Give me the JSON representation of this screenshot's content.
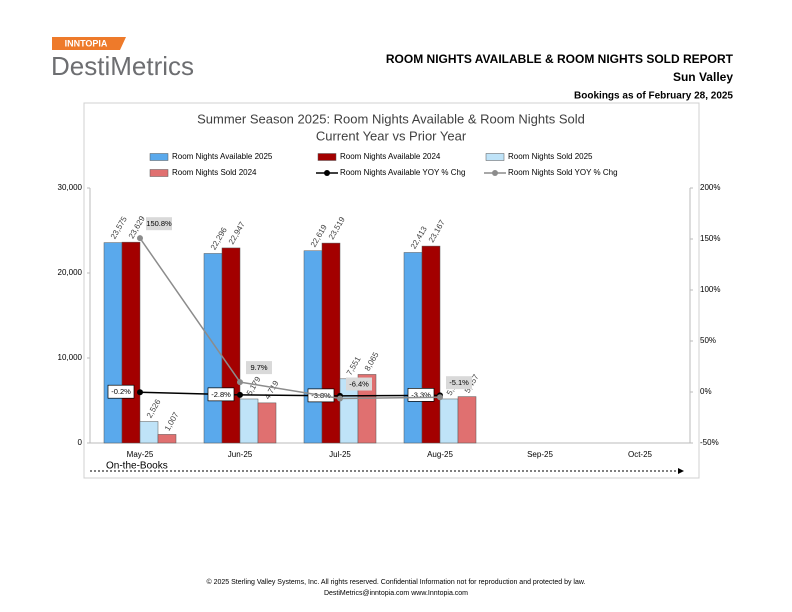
{
  "header": {
    "brand": "INNTOPIA",
    "product": "DestiMetrics",
    "report_title": "ROOM NIGHTS AVAILABLE & ROOM NIGHTS SOLD REPORT",
    "location": "Sun Valley",
    "as_of": "Bookings as of February 28, 2025"
  },
  "chart_data": {
    "type": "bar",
    "title": "Summer Season 2025: Room Nights Available & Room Nights Sold",
    "subtitle": "Current Year vs Prior Year",
    "annotation": "On-the-Books",
    "categories": [
      "May-25",
      "Jun-25",
      "Jul-25",
      "Aug-25",
      "Sep-25",
      "Oct-25"
    ],
    "ylim": [
      0,
      30000
    ],
    "yticks": [
      0,
      {
        "value": 10000,
        "label": "10,000"
      },
      {
        "value": 20000,
        "label": "20,000"
      },
      {
        "value": 30000,
        "label": "30,000"
      }
    ],
    "y2lim": [
      -50,
      200
    ],
    "y2ticks": [
      {
        "value": -50,
        "label": "-50%"
      },
      {
        "value": 0,
        "label": "0%"
      },
      {
        "value": 50,
        "label": "50%"
      },
      {
        "value": 100,
        "label": "100%"
      },
      {
        "value": 150,
        "label": "150%"
      },
      {
        "value": 200,
        "label": "200%"
      }
    ],
    "series": [
      {
        "name": "Room Nights Available 2025",
        "type": "bar",
        "color": "#5aa9ec",
        "values": [
          23575,
          22296,
          22619,
          22413,
          null,
          null
        ],
        "value_labels": [
          "23,575",
          "22,296",
          "22,619",
          "22,413",
          null,
          null
        ]
      },
      {
        "name": "Room Nights Available 2024",
        "type": "bar",
        "color": "#a30000",
        "values": [
          23629,
          22947,
          23519,
          23167,
          null,
          null
        ],
        "value_labels": [
          "23,629",
          "22,947",
          "23,519",
          "23,167",
          null,
          null
        ]
      },
      {
        "name": "Room Nights Sold 2025",
        "type": "bar",
        "color": "#bfe3f8",
        "values": [
          2526,
          5179,
          7551,
          5180,
          null,
          null
        ],
        "value_labels": [
          "2,526",
          "5,179",
          "7,551",
          "5,180",
          null,
          null
        ]
      },
      {
        "name": "Room Nights Sold 2024",
        "type": "bar",
        "color": "#e07070",
        "values": [
          1007,
          4719,
          8065,
          5457,
          null,
          null
        ],
        "value_labels": [
          "1,007",
          "4,719",
          "8,065",
          "5,457",
          null,
          null
        ]
      },
      {
        "name": "Room Nights Available YOY % Chg",
        "type": "line",
        "axis": "y2",
        "color": "#000000",
        "values": [
          -0.2,
          -2.8,
          -3.8,
          -3.3,
          null,
          null
        ],
        "value_labels": [
          "-0.2%",
          "-2.8%",
          "-3.8%",
          "-3.3%",
          null,
          null
        ]
      },
      {
        "name": "Room Nights Sold YOY % Chg",
        "type": "line",
        "axis": "y2",
        "color": "#8c8c8c",
        "values": [
          150.8,
          9.7,
          -6.4,
          -5.1,
          null,
          null
        ],
        "value_labels": [
          "150.8%",
          "9.7%",
          "-6.4%",
          "-5.1%",
          null,
          null
        ]
      }
    ]
  },
  "footer": {
    "copyright": "© 2025 Sterling Valley Systems, Inc. All rights reserved.  Confidential Information not for reproduction and protected by law.",
    "contact": "DestiMetrics@inntopia.com    www.Inntopia.com"
  }
}
